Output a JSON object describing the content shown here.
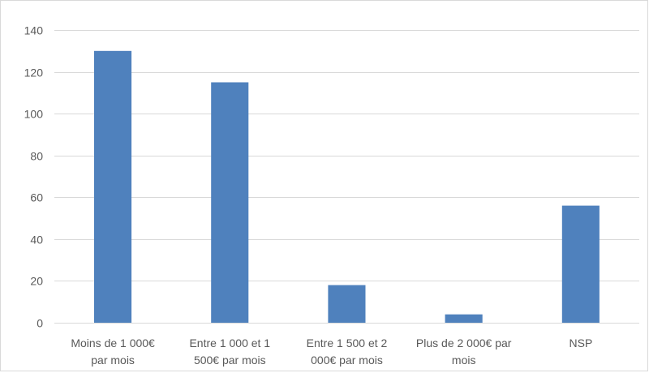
{
  "chart_data": {
    "type": "bar",
    "title": "",
    "xlabel": "",
    "ylabel": "",
    "categories": [
      [
        "Moins de 1 000€",
        "par mois"
      ],
      [
        "Entre 1 000 et 1",
        "500€ par mois"
      ],
      [
        "Entre 1 500 et 2",
        "000€ par mois"
      ],
      [
        "Plus de 2 000€ par",
        "mois"
      ],
      [
        "NSP"
      ]
    ],
    "values": [
      130,
      115,
      18,
      4,
      56
    ],
    "ylim": [
      0,
      140
    ],
    "yticks": [
      0,
      20,
      40,
      60,
      80,
      100,
      120,
      140
    ],
    "grid": true,
    "legend": "none",
    "colors": {
      "bar": "#4f81bd",
      "grid": "#d9d9d9",
      "text": "#595959"
    }
  }
}
